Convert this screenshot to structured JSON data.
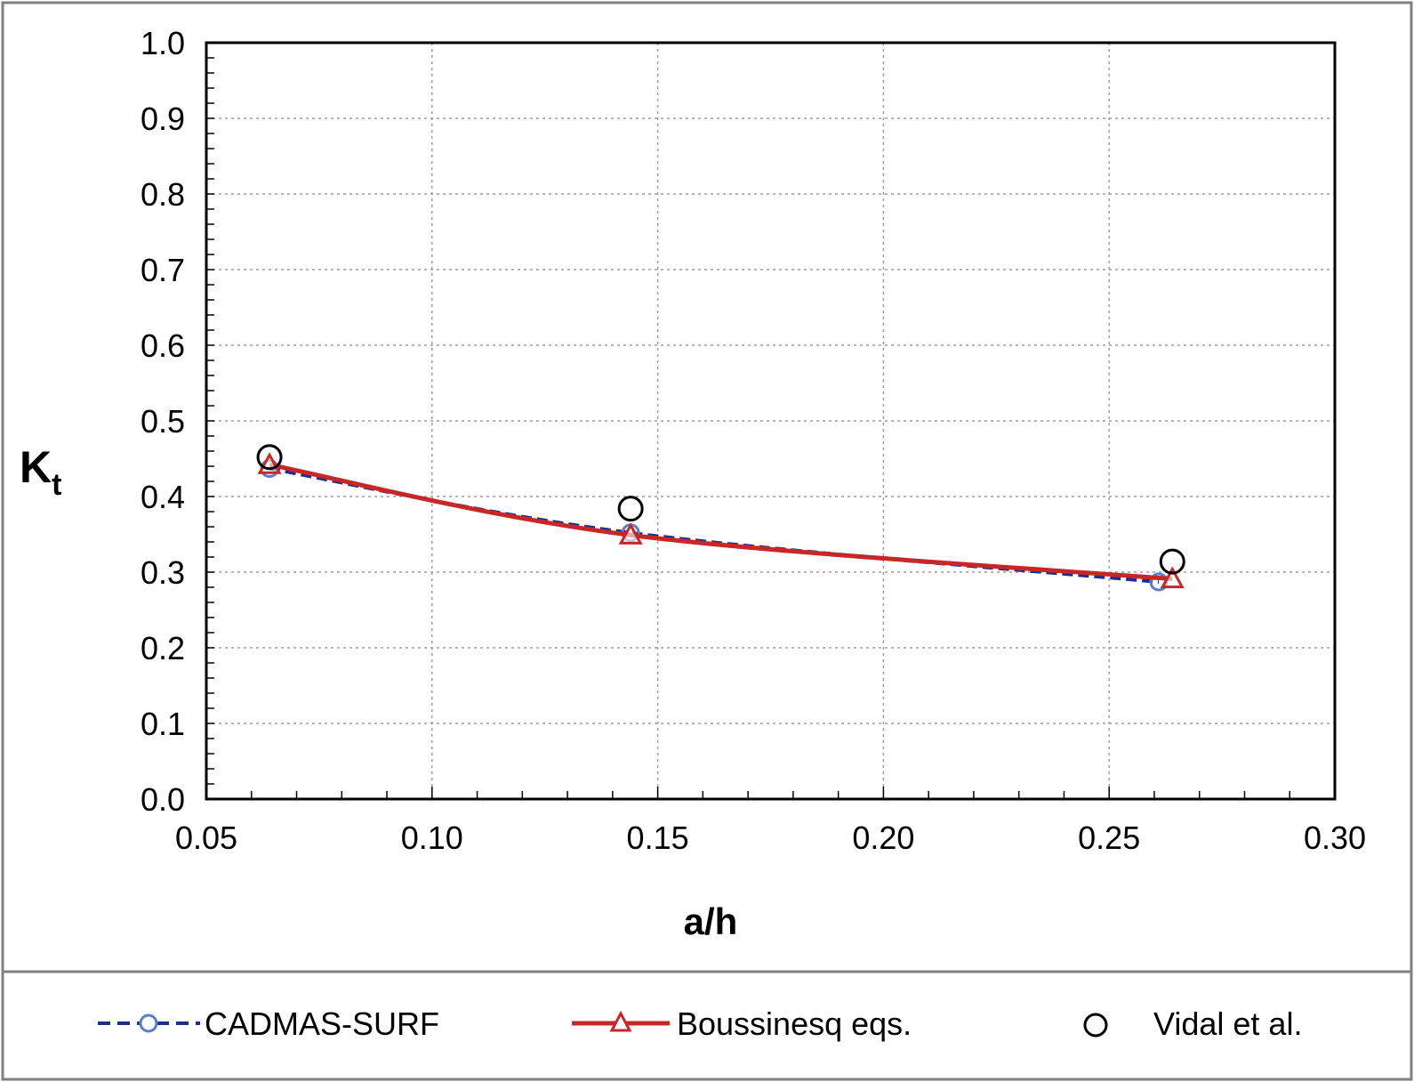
{
  "chart_data": {
    "type": "line",
    "title": "",
    "xlabel": "a/h",
    "ylabel_main": "K",
    "ylabel_sub": "t",
    "xlim": [
      0.05,
      0.3
    ],
    "ylim": [
      0.0,
      1.0
    ],
    "x_ticks": [
      "0.05",
      "0.10",
      "0.15",
      "0.20",
      "0.25",
      "0.30"
    ],
    "y_ticks": [
      "0.0",
      "0.1",
      "0.2",
      "0.3",
      "0.4",
      "0.5",
      "0.6",
      "0.7",
      "0.8",
      "0.9",
      "1.0"
    ],
    "grid": true,
    "legend_position": "bottom",
    "series": [
      {
        "name": "CADMAS-SURF",
        "style": "dashed",
        "marker": "circle",
        "color": "#1f2e8a",
        "x": [
          0.064,
          0.144,
          0.261
        ],
        "y": [
          0.437,
          0.352,
          0.287
        ]
      },
      {
        "name": "Boussinesq eqs.",
        "style": "solid",
        "marker": "triangle",
        "color": "#c62828",
        "x": [
          0.064,
          0.144,
          0.264
        ],
        "y": [
          0.442,
          0.349,
          0.291
        ]
      },
      {
        "name": "Vidal et al.",
        "style": "none",
        "marker": "open-circle",
        "color": "#000000",
        "x": [
          0.064,
          0.144,
          0.264
        ],
        "y": [
          0.452,
          0.384,
          0.314
        ]
      }
    ]
  }
}
